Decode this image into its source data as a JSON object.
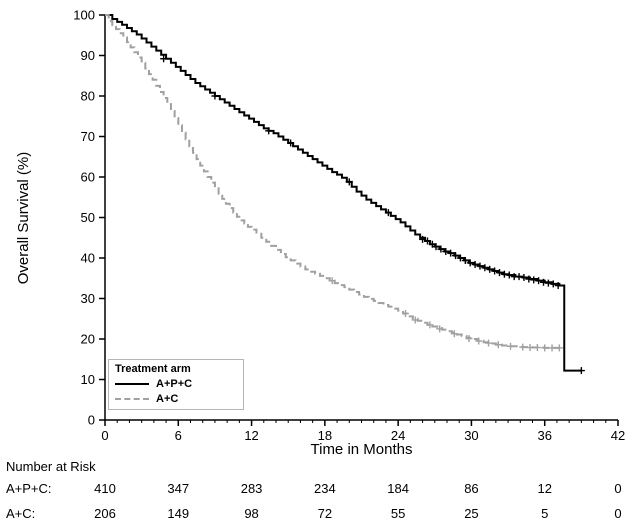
{
  "accent_colors": {
    "solid_series": "#000000",
    "dashed_series": "#a0a0a0",
    "axis": "#000000"
  },
  "chart_data": {
    "type": "line",
    "subtype": "kaplan-meier-step",
    "title": "",
    "xlabel": "Time in Months",
    "ylabel": "Overall Survival (%)",
    "xlim": [
      0,
      42
    ],
    "ylim": [
      0,
      100
    ],
    "xticks": [
      0,
      6,
      12,
      18,
      24,
      30,
      36,
      42
    ],
    "yticks": [
      0,
      10,
      20,
      30,
      40,
      50,
      60,
      70,
      80,
      90,
      100
    ],
    "grid": false,
    "legend": {
      "title": "Treatment arm",
      "position": "lower-left"
    },
    "series": [
      {
        "name": "A+P+C",
        "color": "#000000",
        "style": "solid",
        "points": [
          [
            0,
            100
          ],
          [
            0.6,
            99
          ],
          [
            1.0,
            98.3
          ],
          [
            1.4,
            97.6
          ],
          [
            1.8,
            96.8
          ],
          [
            2.2,
            96
          ],
          [
            2.6,
            95.2
          ],
          [
            3.0,
            94.2
          ],
          [
            3.4,
            93.2
          ],
          [
            3.8,
            92.2
          ],
          [
            4.2,
            91.2
          ],
          [
            4.6,
            90.2
          ],
          [
            5.0,
            89.2
          ],
          [
            5.4,
            88.2
          ],
          [
            5.8,
            87.2
          ],
          [
            6.2,
            86.2
          ],
          [
            6.6,
            85.2
          ],
          [
            7.0,
            84.2
          ],
          [
            7.4,
            83.2
          ],
          [
            7.8,
            82.4
          ],
          [
            8.2,
            81.6
          ],
          [
            8.6,
            80.8
          ],
          [
            9.0,
            80
          ],
          [
            9.4,
            79.2
          ],
          [
            9.8,
            78.4
          ],
          [
            10.2,
            77.6
          ],
          [
            10.6,
            76.8
          ],
          [
            11.0,
            76
          ],
          [
            11.4,
            75.2
          ],
          [
            11.8,
            74.4
          ],
          [
            12.2,
            73.6
          ],
          [
            12.6,
            72.8
          ],
          [
            13.0,
            72
          ],
          [
            13.4,
            71.4
          ],
          [
            13.8,
            70.8
          ],
          [
            14.2,
            70
          ],
          [
            14.6,
            69.2
          ],
          [
            15.0,
            68.4
          ],
          [
            15.4,
            67.6
          ],
          [
            15.8,
            66.8
          ],
          [
            16.2,
            66
          ],
          [
            16.6,
            65.2
          ],
          [
            17.0,
            64.4
          ],
          [
            17.4,
            63.6
          ],
          [
            17.8,
            62.8
          ],
          [
            18.2,
            62
          ],
          [
            18.6,
            61.2
          ],
          [
            19.0,
            60.6
          ],
          [
            19.4,
            59.8
          ],
          [
            19.8,
            58.8
          ],
          [
            20.2,
            57.6
          ],
          [
            20.6,
            56.4
          ],
          [
            21.0,
            55.4
          ],
          [
            21.4,
            54.4
          ],
          [
            21.8,
            53.6
          ],
          [
            22.2,
            52.8
          ],
          [
            22.6,
            52
          ],
          [
            23.0,
            51.2
          ],
          [
            23.4,
            50.4
          ],
          [
            23.8,
            49.6
          ],
          [
            24.2,
            48.8
          ],
          [
            24.6,
            47.8
          ],
          [
            25.0,
            46.8
          ],
          [
            25.4,
            45.8
          ],
          [
            25.8,
            45
          ],
          [
            26.2,
            44.2
          ],
          [
            26.6,
            43.4
          ],
          [
            27.0,
            42.8
          ],
          [
            27.4,
            42.2
          ],
          [
            27.8,
            41.6
          ],
          [
            28.2,
            41.2
          ],
          [
            28.6,
            40.6
          ],
          [
            29.0,
            40
          ],
          [
            29.4,
            39.4
          ],
          [
            29.8,
            38.8
          ],
          [
            30.2,
            38.4
          ],
          [
            30.6,
            38
          ],
          [
            31.0,
            37.6
          ],
          [
            31.4,
            37.2
          ],
          [
            31.8,
            36.8
          ],
          [
            32.2,
            36.4
          ],
          [
            32.6,
            36
          ],
          [
            33.0,
            35.8
          ],
          [
            33.6,
            35.4
          ],
          [
            34.2,
            35.2
          ],
          [
            34.8,
            34.8
          ],
          [
            35.4,
            34.4
          ],
          [
            36.0,
            34
          ],
          [
            36.6,
            33.6
          ],
          [
            37.2,
            33.2
          ],
          [
            37.6,
            12.2
          ],
          [
            39.0,
            12.2
          ]
        ],
        "censors": [
          [
            4.8,
            89.2
          ],
          [
            9.0,
            80
          ],
          [
            13.4,
            71.4
          ],
          [
            15.2,
            68.4
          ],
          [
            20.0,
            58.8
          ],
          [
            23.2,
            51.2
          ],
          [
            26.0,
            44.6
          ],
          [
            26.4,
            44.2
          ],
          [
            26.8,
            43.4
          ],
          [
            27.1,
            42.8
          ],
          [
            27.5,
            42.2
          ],
          [
            27.9,
            41.6
          ],
          [
            28.3,
            41.2
          ],
          [
            28.7,
            40.6
          ],
          [
            29.1,
            40
          ],
          [
            29.5,
            39.4
          ],
          [
            29.9,
            38.8
          ],
          [
            30.3,
            38.4
          ],
          [
            30.7,
            38
          ],
          [
            31.1,
            37.6
          ],
          [
            31.5,
            37.2
          ],
          [
            31.9,
            36.8
          ],
          [
            32.3,
            36.4
          ],
          [
            32.7,
            36
          ],
          [
            33.1,
            35.8
          ],
          [
            33.5,
            35.4
          ],
          [
            33.9,
            35.4
          ],
          [
            34.3,
            35.2
          ],
          [
            34.7,
            34.8
          ],
          [
            35.1,
            34.6
          ],
          [
            35.5,
            34.4
          ],
          [
            35.9,
            34
          ],
          [
            36.3,
            33.8
          ],
          [
            36.7,
            33.6
          ],
          [
            37.1,
            33.2
          ],
          [
            39.0,
            12.2
          ]
        ]
      },
      {
        "name": "A+C",
        "color": "#a0a0a0",
        "style": "dashed",
        "points": [
          [
            0,
            100
          ],
          [
            0.3,
            98.5
          ],
          [
            0.6,
            97.5
          ],
          [
            0.9,
            96.5
          ],
          [
            1.2,
            95.5
          ],
          [
            1.5,
            94.5
          ],
          [
            1.8,
            93.3
          ],
          [
            2.1,
            92
          ],
          [
            2.4,
            90.8
          ],
          [
            2.7,
            89.5
          ],
          [
            3.0,
            88.2
          ],
          [
            3.3,
            86.8
          ],
          [
            3.6,
            85.4
          ],
          [
            3.9,
            84
          ],
          [
            4.2,
            82.5
          ],
          [
            4.5,
            81
          ],
          [
            4.8,
            79.5
          ],
          [
            5.1,
            78
          ],
          [
            5.4,
            76.3
          ],
          [
            5.7,
            74.6
          ],
          [
            6.0,
            72.8
          ],
          [
            6.3,
            71
          ],
          [
            6.6,
            69.3
          ],
          [
            6.9,
            67.6
          ],
          [
            7.2,
            66
          ],
          [
            7.5,
            64.4
          ],
          [
            7.8,
            62.8
          ],
          [
            8.1,
            61.4
          ],
          [
            8.4,
            60
          ],
          [
            8.7,
            58.6
          ],
          [
            9.0,
            57.2
          ],
          [
            9.3,
            55.9
          ],
          [
            9.6,
            54.6
          ],
          [
            9.9,
            53.4
          ],
          [
            10.2,
            52.3
          ],
          [
            10.5,
            51.2
          ],
          [
            10.8,
            50.2
          ],
          [
            11.1,
            49.3
          ],
          [
            11.4,
            48.5
          ],
          [
            11.7,
            47.7
          ],
          [
            12.0,
            47
          ],
          [
            12.4,
            46
          ],
          [
            12.8,
            45
          ],
          [
            13.2,
            44
          ],
          [
            13.6,
            43
          ],
          [
            14.0,
            42
          ],
          [
            14.4,
            41
          ],
          [
            14.8,
            40.2
          ],
          [
            15.2,
            39.4
          ],
          [
            15.6,
            38.6
          ],
          [
            16.0,
            37.9
          ],
          [
            16.4,
            37.2
          ],
          [
            16.8,
            36.6
          ],
          [
            17.2,
            36.1
          ],
          [
            17.6,
            35.6
          ],
          [
            18.0,
            35
          ],
          [
            18.4,
            34.4
          ],
          [
            18.8,
            33.8
          ],
          [
            19.2,
            33.3
          ],
          [
            19.6,
            32.8
          ],
          [
            20.0,
            32.2
          ],
          [
            20.4,
            31.6
          ],
          [
            20.8,
            31
          ],
          [
            21.2,
            30.4
          ],
          [
            21.6,
            29.9
          ],
          [
            22.0,
            29.4
          ],
          [
            22.4,
            28.9
          ],
          [
            22.8,
            28.4
          ],
          [
            23.2,
            28
          ],
          [
            23.6,
            27.5
          ],
          [
            24.0,
            27
          ],
          [
            24.4,
            26.3
          ],
          [
            24.8,
            25.6
          ],
          [
            25.2,
            25
          ],
          [
            25.6,
            24.5
          ],
          [
            26.0,
            24
          ],
          [
            26.4,
            23.5
          ],
          [
            26.8,
            23.1
          ],
          [
            27.2,
            22.7
          ],
          [
            27.6,
            22.3
          ],
          [
            28.0,
            21.9
          ],
          [
            28.4,
            21.5
          ],
          [
            28.8,
            21.1
          ],
          [
            29.2,
            20.7
          ],
          [
            29.6,
            20.3
          ],
          [
            30.0,
            20
          ],
          [
            30.5,
            19.6
          ],
          [
            31.0,
            19.2
          ],
          [
            31.5,
            18.9
          ],
          [
            32.0,
            18.6
          ],
          [
            32.5,
            18.4
          ],
          [
            33.0,
            18.2
          ],
          [
            34.0,
            18.0
          ],
          [
            35.0,
            17.9
          ],
          [
            36.0,
            17.8
          ],
          [
            37.2,
            17.8
          ]
        ],
        "censors": [
          [
            18.6,
            34.4
          ],
          [
            24.6,
            26.3
          ],
          [
            25.4,
            24.7
          ],
          [
            26.6,
            23.5
          ],
          [
            27.4,
            22.5
          ],
          [
            28.6,
            21.3
          ],
          [
            29.8,
            20.1
          ],
          [
            30.6,
            19.5
          ],
          [
            31.4,
            19.0
          ],
          [
            32.2,
            18.6
          ],
          [
            33.2,
            18.2
          ],
          [
            34.2,
            18.0
          ],
          [
            34.8,
            17.9
          ],
          [
            35.4,
            17.9
          ],
          [
            36.0,
            17.8
          ],
          [
            36.6,
            17.8
          ],
          [
            37.2,
            17.8
          ]
        ]
      }
    ],
    "risk_table": {
      "title": "Number at Risk",
      "times": [
        0,
        6,
        12,
        18,
        24,
        30,
        36,
        42
      ],
      "rows": [
        {
          "label": "A+P+C:",
          "counts": [
            410,
            347,
            283,
            234,
            184,
            86,
            12,
            0
          ]
        },
        {
          "label": "A+C:",
          "counts": [
            206,
            149,
            98,
            72,
            55,
            25,
            5,
            0
          ]
        }
      ]
    }
  }
}
